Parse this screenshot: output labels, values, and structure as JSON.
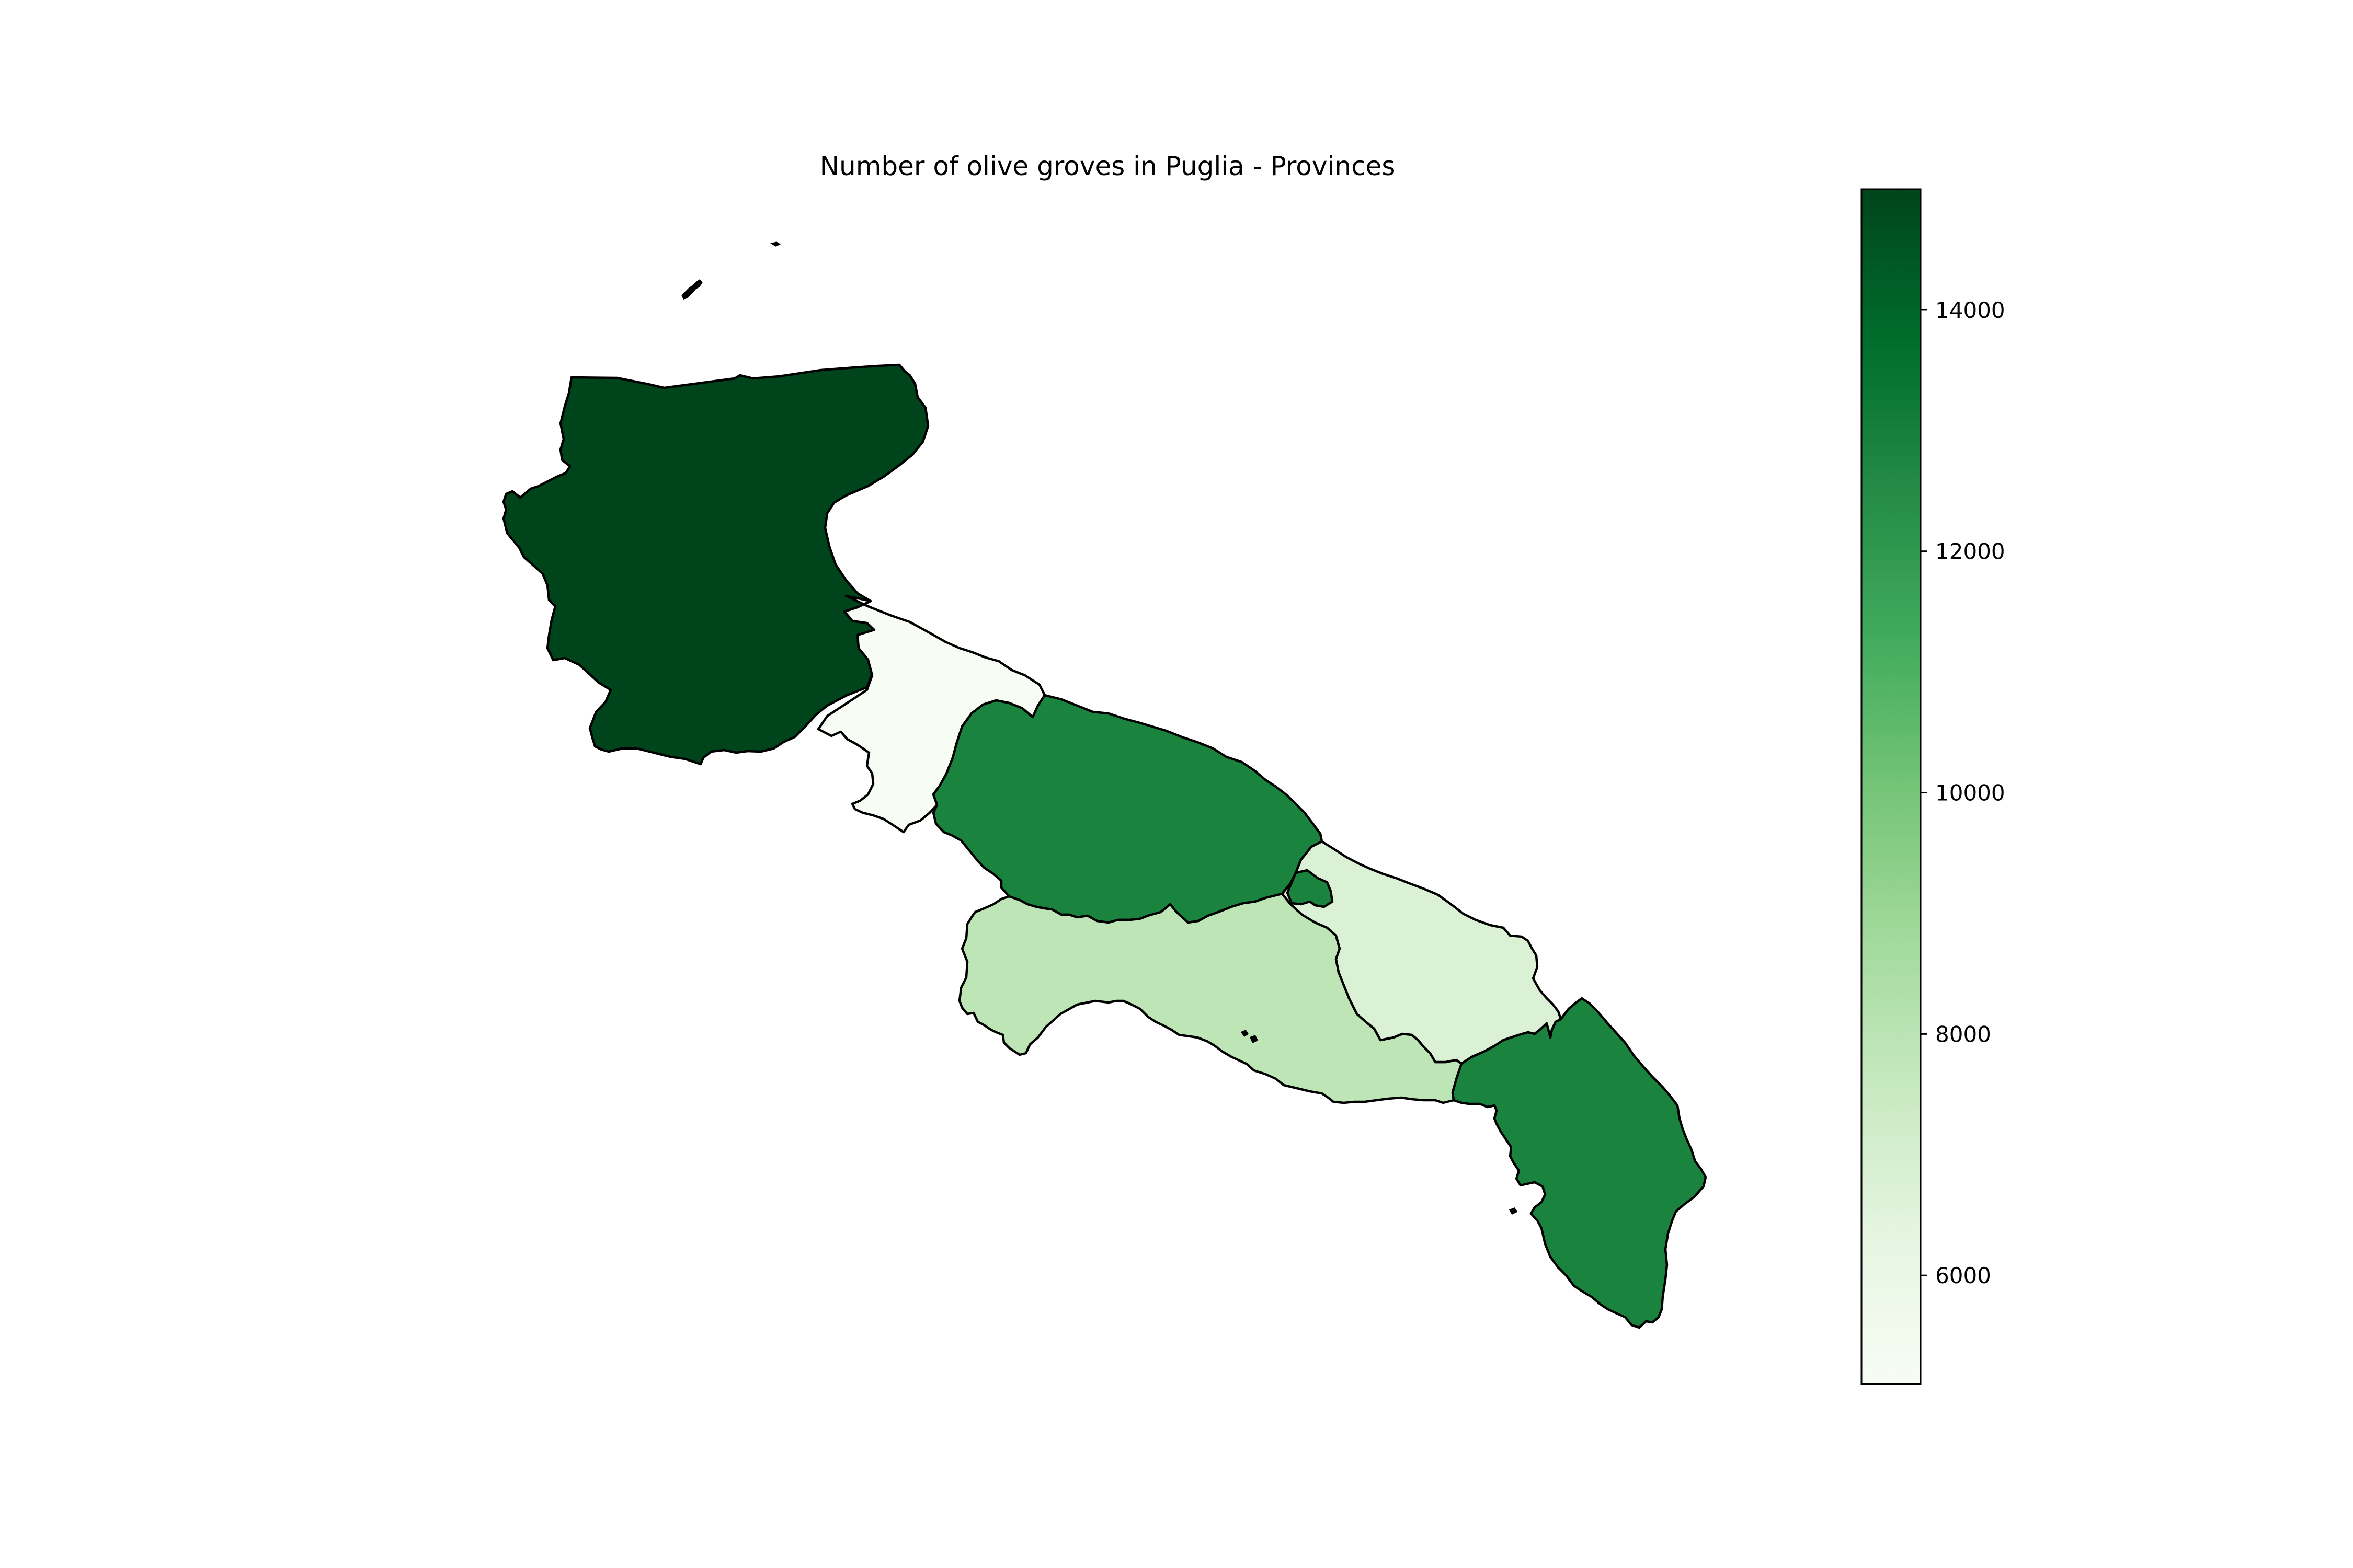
{
  "chart_data": {
    "type": "choropleth",
    "title": "Number of olive groves in Puglia - Provinces",
    "colorbar": {
      "min": 5100,
      "max": 15000,
      "ticks": [
        6000,
        8000,
        10000,
        12000,
        14000
      ],
      "tick_labels": [
        "6000",
        "8000",
        "10000",
        "12000",
        "14000"
      ],
      "colormap": "Greens",
      "stops": [
        "#f7fcf5",
        "#e5f5e0",
        "#c7e9c0",
        "#a1d99b",
        "#74c476",
        "#41ab5d",
        "#238b45",
        "#006d2c",
        "#00441b"
      ]
    },
    "regions": [
      {
        "id": "foggia",
        "value": 15000
      },
      {
        "id": "bat",
        "value": 5100
      },
      {
        "id": "bari",
        "value": 12850
      },
      {
        "id": "taranto",
        "value": 7900
      },
      {
        "id": "brindisi",
        "value": 6750
      },
      {
        "id": "lecce",
        "value": 12850
      },
      {
        "id": "enclave",
        "value": 12850
      }
    ]
  }
}
